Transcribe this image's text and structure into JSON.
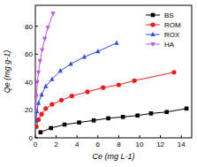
{
  "chart_data": {
    "type": "line",
    "x_label": "Ce (mg L-1)",
    "y_label": "Qe (mg g-1)",
    "xlim": [
      0,
      15
    ],
    "xticks": [
      0,
      2,
      4,
      6,
      8,
      10,
      12,
      14
    ],
    "ylim": [
      0,
      95
    ],
    "yticks": [
      0,
      20,
      40,
      60,
      80
    ],
    "legend": "upper right",
    "grid": false,
    "series": [
      {
        "name": "BS",
        "color": "#000000",
        "marker": "square",
        "line_style": "solid",
        "x": [
          0.5,
          1.5,
          2.8,
          4.2,
          5.6,
          7,
          8.4,
          9.8,
          11.1,
          12.6,
          14.5
        ],
        "values": [
          4,
          7,
          9.5,
          11,
          12.5,
          14,
          15,
          16,
          17.5,
          18.5,
          21
        ]
      },
      {
        "name": "ROM",
        "color": "#ee1c1c",
        "marker": "circle",
        "line_style": "solid",
        "x": [
          0.1,
          0.3,
          0.6,
          1,
          1.6,
          2.5,
          3.5,
          5,
          6.5,
          8,
          9.5,
          13.3
        ],
        "values": [
          8,
          13,
          17,
          21,
          24,
          27,
          30,
          33,
          36,
          38,
          41,
          47
        ]
      },
      {
        "name": "ROX",
        "color": "#2f4fe6",
        "marker": "triangle-up",
        "line_style": "solid",
        "x": [
          0.05,
          0.15,
          0.3,
          0.6,
          1,
          1.6,
          2.4,
          3.4,
          4.7,
          6,
          7.8
        ],
        "values": [
          12,
          19,
          25,
          31,
          37,
          42,
          48,
          53,
          58,
          62,
          68
        ]
      },
      {
        "name": "HA",
        "color": "#c452f0",
        "marker": "triangle-down",
        "line_style": "solid",
        "x": [
          0.05,
          0.1,
          0.2,
          0.3,
          0.45,
          0.65,
          0.9,
          1.2,
          1.7
        ],
        "values": [
          20,
          30,
          40,
          47,
          55,
          63,
          71,
          79,
          89
        ]
      }
    ]
  }
}
